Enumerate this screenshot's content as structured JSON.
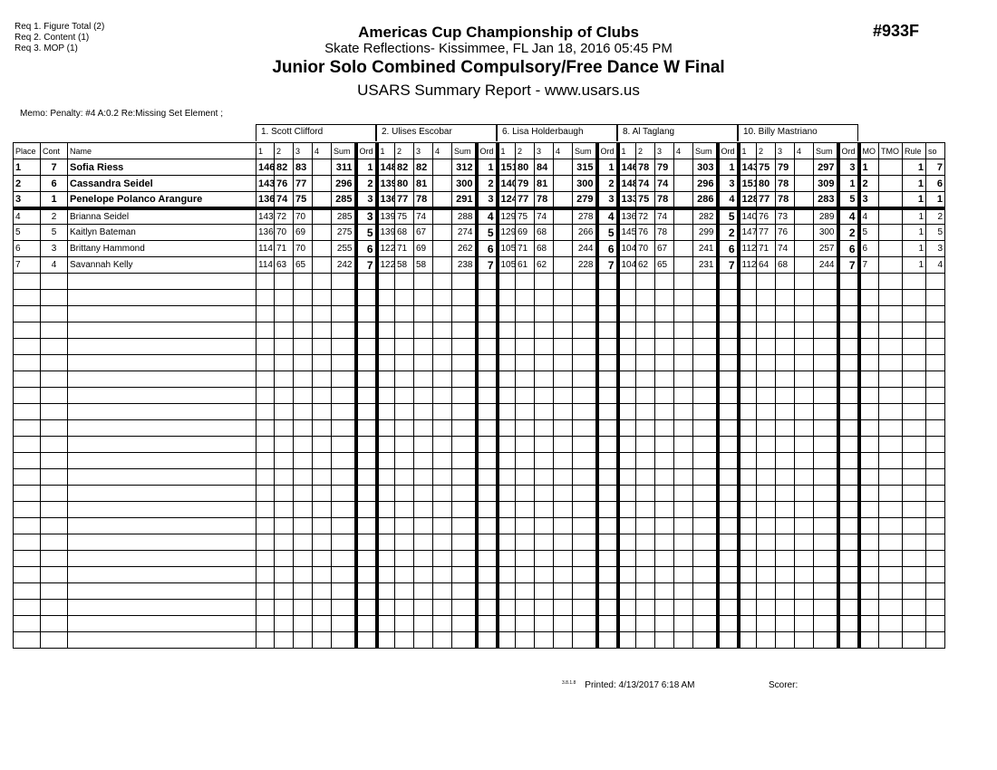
{
  "requirements": [
    "Req  1.  Figure Total (2)",
    "Req  2.  Content (1)",
    "Req  3.  MOP (1)"
  ],
  "header": {
    "title": "Americas Cup Championship of Clubs",
    "subtitle": "Skate Reflections- Kissimmee, FL  Jan 18, 2016  05:45 PM",
    "event": "Junior Solo Combined Compulsory/Free Dance W Final",
    "report": "USARS Summary Report - www.usars.us",
    "event_number": "#933F"
  },
  "memo": "Memo: Penalty: #4 A:0.2 Re:Missing Set Element ;",
  "judges": [
    "1.  Scott Clifford",
    "2.  Ulises Escobar",
    "6.  Lisa Holderbaugh",
    "8.  Al Taglang",
    "10.  Billy Mastriano"
  ],
  "columns": {
    "place": "Place",
    "cont": "Cont",
    "name": "Name",
    "judge_cols": [
      "1",
      "2",
      "3",
      "4",
      "Sum",
      "Ord"
    ],
    "tail": [
      "MO",
      "TMO",
      "Rule",
      "so"
    ]
  },
  "rows": [
    {
      "place": "1",
      "cont": "7",
      "name": "Sofia Riess",
      "scores": [
        [
          "146",
          "82",
          "83",
          "",
          "311",
          "1"
        ],
        [
          "148",
          "82",
          "82",
          "",
          "312",
          "1"
        ],
        [
          "151",
          "80",
          "84",
          "",
          "315",
          "1"
        ],
        [
          "146",
          "78",
          "79",
          "",
          "303",
          "1"
        ],
        [
          "143",
          "75",
          "79",
          "",
          "297",
          "3"
        ]
      ],
      "tail": [
        "1",
        "",
        "1",
        "7"
      ]
    },
    {
      "place": "2",
      "cont": "6",
      "name": "Cassandra Seidel",
      "scores": [
        [
          "143",
          "76",
          "77",
          "",
          "296",
          "2"
        ],
        [
          "139",
          "80",
          "81",
          "",
          "300",
          "2"
        ],
        [
          "140",
          "79",
          "81",
          "",
          "300",
          "2"
        ],
        [
          "148",
          "74",
          "74",
          "",
          "296",
          "3"
        ],
        [
          "151",
          "80",
          "78",
          "",
          "309",
          "1"
        ]
      ],
      "tail": [
        "2",
        "",
        "1",
        "6"
      ]
    },
    {
      "place": "3",
      "cont": "1",
      "name": "Penelope Polanco Arangure",
      "scores": [
        [
          "136",
          "74",
          "75",
          "",
          "285",
          "3"
        ],
        [
          "136",
          "77",
          "78",
          "",
          "291",
          "3"
        ],
        [
          "124",
          "77",
          "78",
          "",
          "279",
          "3"
        ],
        [
          "133",
          "75",
          "78",
          "",
          "286",
          "4"
        ],
        [
          "128",
          "77",
          "78",
          "",
          "283",
          "5"
        ]
      ],
      "tail": [
        "3",
        "",
        "1",
        "1"
      ]
    },
    {
      "place": "4",
      "cont": "2",
      "name": "Brianna Seidel",
      "scores": [
        [
          "143",
          "72",
          "70",
          "",
          "285",
          "3"
        ],
        [
          "139",
          "75",
          "74",
          "",
          "288",
          "4"
        ],
        [
          "129",
          "75",
          "74",
          "",
          "278",
          "4"
        ],
        [
          "136",
          "72",
          "74",
          "",
          "282",
          "5"
        ],
        [
          "140",
          "76",
          "73",
          "",
          "289",
          "4"
        ]
      ],
      "tail": [
        "4",
        "",
        "1",
        "2"
      ]
    },
    {
      "place": "5",
      "cont": "5",
      "name": "Kaitlyn Bateman",
      "scores": [
        [
          "136",
          "70",
          "69",
          "",
          "275",
          "5"
        ],
        [
          "139",
          "68",
          "67",
          "",
          "274",
          "5"
        ],
        [
          "129",
          "69",
          "68",
          "",
          "266",
          "5"
        ],
        [
          "145",
          "76",
          "78",
          "",
          "299",
          "2"
        ],
        [
          "147",
          "77",
          "76",
          "",
          "300",
          "2"
        ]
      ],
      "tail": [
        "5",
        "",
        "1",
        "5"
      ]
    },
    {
      "place": "6",
      "cont": "3",
      "name": "Brittany Hammond",
      "scores": [
        [
          "114",
          "71",
          "70",
          "",
          "255",
          "6"
        ],
        [
          "122",
          "71",
          "69",
          "",
          "262",
          "6"
        ],
        [
          "105",
          "71",
          "68",
          "",
          "244",
          "6"
        ],
        [
          "104",
          "70",
          "67",
          "",
          "241",
          "6"
        ],
        [
          "112",
          "71",
          "74",
          "",
          "257",
          "6"
        ]
      ],
      "tail": [
        "6",
        "",
        "1",
        "3"
      ]
    },
    {
      "place": "7",
      "cont": "4",
      "name": "Savannah Kelly",
      "scores": [
        [
          "114",
          "63",
          "65",
          "",
          "242",
          "7"
        ],
        [
          "122",
          "58",
          "58",
          "",
          "238",
          "7"
        ],
        [
          "105",
          "61",
          "62",
          "",
          "228",
          "7"
        ],
        [
          "104",
          "62",
          "65",
          "",
          "231",
          "7"
        ],
        [
          "112",
          "64",
          "68",
          "",
          "244",
          "7"
        ]
      ],
      "tail": [
        "7",
        "",
        "1",
        "4"
      ]
    }
  ],
  "medal_rows": 3,
  "footer": {
    "version": "3.8.1.8",
    "printed": "Printed:  4/13/2017  6:18 AM",
    "scorer": "Scorer:"
  }
}
